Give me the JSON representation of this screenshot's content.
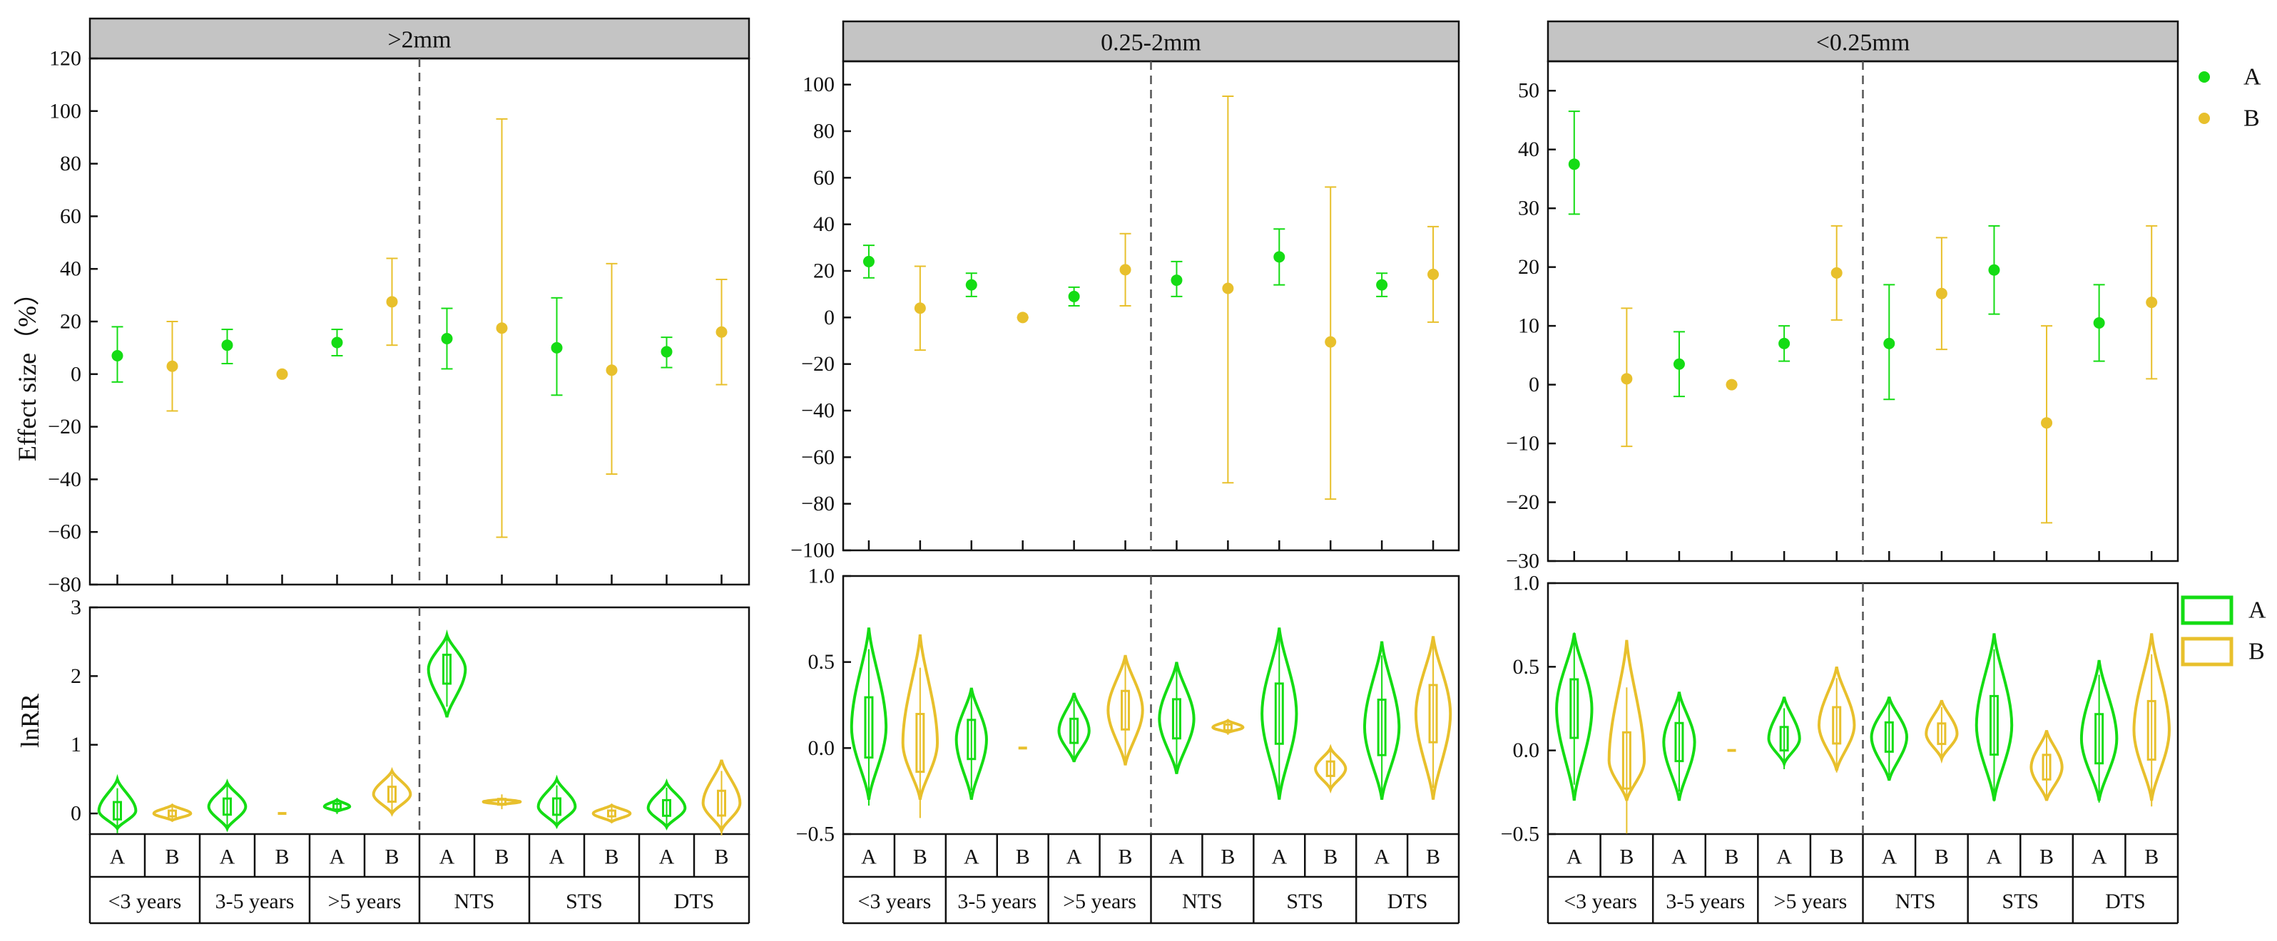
{
  "colors": {
    "A": "#14dc14",
    "B": "#e8c02c"
  },
  "chart_data": [
    {
      "type": "scatter",
      "title": ">2mm",
      "ylabel": "Effect size（%）",
      "ylim": [
        -80,
        120
      ],
      "yticks": [
        -80,
        -60,
        -40,
        -20,
        0,
        20,
        40,
        60,
        80,
        100,
        120
      ],
      "series": [
        {
          "name": "A",
          "means": [
            7,
            11,
            12,
            13.5,
            10,
            8.5
          ],
          "lower": [
            -3,
            4,
            7,
            2,
            -8,
            2.5
          ],
          "upper": [
            18,
            17,
            17,
            25,
            29,
            14
          ]
        },
        {
          "name": "B",
          "means": [
            3,
            0,
            27.5,
            17.5,
            1.5,
            16
          ],
          "lower": [
            -14,
            0,
            11,
            -62,
            -38,
            -4
          ],
          "upper": [
            20,
            0,
            44,
            97,
            42,
            36
          ]
        }
      ],
      "violin": {
        "ylabel": "lnRR",
        "ylim": [
          -0.3,
          3
        ],
        "yticks": [
          0,
          1,
          2,
          3
        ],
        "ytick_labels": [
          "0",
          "1",
          "2",
          "3"
        ],
        "A": [
          {
            "c": 0.04,
            "lo": -0.22,
            "hi": 0.5,
            "w": 0.8
          },
          {
            "c": 0.1,
            "lo": -0.22,
            "hi": 0.45,
            "w": 0.8
          },
          {
            "c": 0.1,
            "lo": 0.03,
            "hi": 0.2,
            "w": 0.55
          },
          {
            "c": 2.1,
            "lo": 1.4,
            "hi": 2.6,
            "w": 0.8
          },
          {
            "c": 0.1,
            "lo": -0.18,
            "hi": 0.5,
            "w": 0.8
          },
          {
            "c": 0.08,
            "lo": -0.2,
            "hi": 0.45,
            "w": 0.8
          }
        ],
        "B": [
          {
            "c": 0.0,
            "lo": -0.1,
            "hi": 0.12,
            "w": 0.8
          },
          {
            "c": 0,
            "lo": -0.01,
            "hi": 0.01,
            "w": 0.15
          },
          {
            "c": 0.28,
            "lo": 0.0,
            "hi": 0.62,
            "w": 0.8
          },
          {
            "c": 0.17,
            "lo": 0.13,
            "hi": 0.21,
            "w": 0.8
          },
          {
            "c": 0.0,
            "lo": -0.12,
            "hi": 0.12,
            "w": 0.8
          },
          {
            "c": 0.15,
            "lo": -0.25,
            "hi": 0.78,
            "w": 0.8
          }
        ]
      }
    },
    {
      "type": "scatter",
      "title": "0.25-2mm",
      "ylim": [
        -100,
        110
      ],
      "yticks": [
        -100,
        -80,
        -60,
        -40,
        -20,
        0,
        20,
        40,
        60,
        80,
        100
      ],
      "series": [
        {
          "name": "A",
          "means": [
            24,
            14,
            9,
            16,
            26,
            14
          ],
          "lower": [
            17,
            9,
            5,
            9,
            14,
            9
          ],
          "upper": [
            31,
            19,
            13,
            24,
            38,
            19
          ]
        },
        {
          "name": "B",
          "means": [
            4,
            0,
            20.5,
            12.5,
            -10.5,
            18.5
          ],
          "lower": [
            -14,
            0,
            5,
            -71,
            -78,
            -2
          ],
          "upper": [
            22,
            0,
            36,
            95,
            56,
            39
          ]
        }
      ],
      "violin": {
        "ylim": [
          -0.5,
          1.0
        ],
        "yticks": [
          -0.5,
          0,
          0.5,
          1.0
        ],
        "ytick_labels": [
          "−0.5",
          "0.0",
          "0.5",
          "1.0"
        ],
        "A": [
          {
            "c": 0.12,
            "lo": -0.3,
            "hi": 0.7,
            "w": 0.8
          },
          {
            "c": 0.05,
            "lo": -0.3,
            "hi": 0.35,
            "w": 0.7
          },
          {
            "c": 0.1,
            "lo": -0.08,
            "hi": 0.32,
            "w": 0.7
          },
          {
            "c": 0.17,
            "lo": -0.15,
            "hi": 0.5,
            "w": 0.8
          },
          {
            "c": 0.2,
            "lo": -0.3,
            "hi": 0.7,
            "w": 0.8
          },
          {
            "c": 0.12,
            "lo": -0.3,
            "hi": 0.62,
            "w": 0.8
          }
        ],
        "B": [
          {
            "c": 0.03,
            "lo": -0.3,
            "hi": 0.66,
            "w": 0.8
          },
          {
            "c": 0,
            "lo": -0.01,
            "hi": 0.01,
            "w": 0.15
          },
          {
            "c": 0.22,
            "lo": -0.1,
            "hi": 0.54,
            "w": 0.8
          },
          {
            "c": 0.12,
            "lo": 0.09,
            "hi": 0.16,
            "w": 0.7
          },
          {
            "c": -0.12,
            "lo": -0.24,
            "hi": 0.0,
            "w": 0.7
          },
          {
            "c": 0.2,
            "lo": -0.3,
            "hi": 0.65,
            "w": 0.8
          }
        ]
      }
    },
    {
      "type": "scatter",
      "title": "<0.25mm",
      "ylim": [
        -30,
        55
      ],
      "yticks": [
        -30,
        -20,
        -10,
        0,
        10,
        20,
        30,
        40,
        50
      ],
      "series": [
        {
          "name": "A",
          "means": [
            37.5,
            3.5,
            7,
            7,
            19.5,
            10.5
          ],
          "lower": [
            29,
            -2,
            4,
            -2.5,
            12,
            4
          ],
          "upper": [
            46.5,
            9,
            10,
            17,
            27,
            17
          ]
        },
        {
          "name": "B",
          "means": [
            1,
            0,
            19,
            15.5,
            -6.5,
            14
          ],
          "lower": [
            -10.5,
            0,
            11,
            6,
            -23.5,
            1
          ],
          "upper": [
            13,
            0,
            27,
            25,
            10,
            27
          ]
        }
      ],
      "violin": {
        "ylim": [
          -0.5,
          1.0
        ],
        "yticks": [
          -0.5,
          0,
          0.5,
          1.0
        ],
        "ytick_labels": [
          "−0.5",
          "0.0",
          "0.5",
          "1.0"
        ],
        "A": [
          {
            "c": 0.25,
            "lo": -0.3,
            "hi": 0.7,
            "w": 0.8
          },
          {
            "c": 0.05,
            "lo": -0.3,
            "hi": 0.35,
            "w": 0.7
          },
          {
            "c": 0.07,
            "lo": -0.08,
            "hi": 0.32,
            "w": 0.7
          },
          {
            "c": 0.08,
            "lo": -0.18,
            "hi": 0.32,
            "w": 0.8
          },
          {
            "c": 0.15,
            "lo": -0.3,
            "hi": 0.7,
            "w": 0.8
          },
          {
            "c": 0.07,
            "lo": -0.3,
            "hi": 0.54,
            "w": 0.8
          }
        ],
        "B": [
          {
            "c": -0.06,
            "lo": -0.3,
            "hi": 0.66,
            "w": 0.8
          },
          {
            "c": 0,
            "lo": -0.01,
            "hi": 0.01,
            "w": 0.15
          },
          {
            "c": 0.15,
            "lo": -0.12,
            "hi": 0.5,
            "w": 0.8
          },
          {
            "c": 0.1,
            "lo": -0.05,
            "hi": 0.3,
            "w": 0.7
          },
          {
            "c": -0.1,
            "lo": -0.3,
            "hi": 0.12,
            "w": 0.7
          },
          {
            "c": 0.12,
            "lo": -0.3,
            "hi": 0.7,
            "w": 0.8
          }
        ]
      }
    }
  ],
  "categories": [
    "<3 years",
    "3-5 years",
    ">5 years",
    "NTS",
    "STS",
    "DTS"
  ],
  "group_labels": [
    "A",
    "B"
  ],
  "legend": {
    "top": [
      "A",
      "B"
    ],
    "bottom": [
      "A",
      "B"
    ]
  }
}
